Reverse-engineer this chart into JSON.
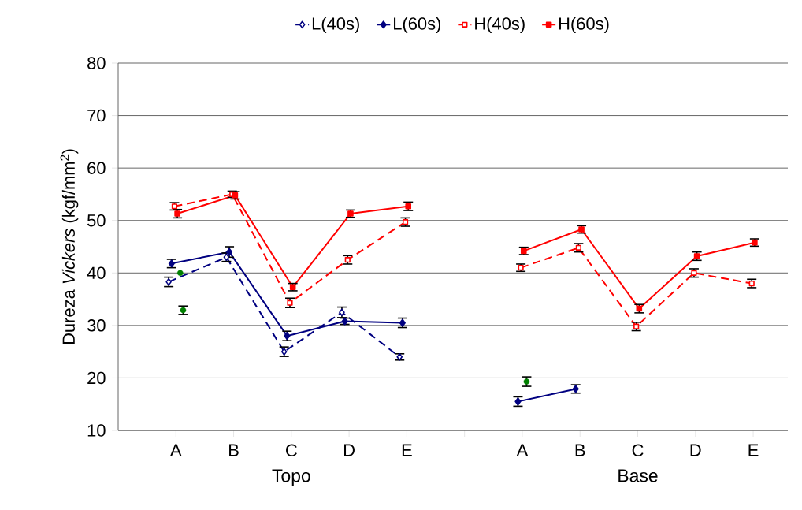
{
  "chart_data": {
    "type": "line",
    "ylabel": "Dureza *Vickers* (kgf/mm$^{2}$)",
    "categories": [
      "A",
      "B",
      "C",
      "D",
      "E",
      null,
      "A",
      "B",
      "C",
      "D",
      "E"
    ],
    "annotations": [
      "Topo",
      "Base"
    ],
    "ylim": [
      10,
      80
    ],
    "yticks": [
      10,
      20,
      30,
      40,
      50,
      60,
      70,
      80
    ],
    "grid": "y",
    "legend": "top",
    "series": [
      {
        "name": "L(40s)",
        "color": "#000080",
        "line_style": "dashed",
        "marker": "diamond",
        "values": [
          38.3,
          43,
          25,
          32.5,
          24,
          null,
          null,
          null,
          null,
          null,
          null
        ],
        "errors": [
          0.9,
          0.8,
          0.9,
          1,
          0.6,
          null,
          null,
          null,
          null,
          null,
          null
        ]
      },
      {
        "name": "L(60s)",
        "color": "#000080",
        "line_style": "solid",
        "marker": "diamond",
        "values": [
          41.8,
          44,
          28,
          30.8,
          30.5,
          null,
          15.5,
          17.9,
          null,
          null,
          null
        ],
        "errors": [
          0.8,
          1,
          0.9,
          0.6,
          0.9,
          null,
          0.9,
          0.8,
          null,
          null,
          null
        ]
      },
      {
        "name": "H(40s)",
        "color": "#ff0000",
        "line_style": "dashed",
        "marker": "square",
        "values": [
          52.7,
          55,
          34.3,
          42.5,
          49.7,
          null,
          41,
          44.8,
          29.8,
          40,
          38
        ],
        "errors": [
          0.7,
          0.6,
          0.9,
          0.8,
          0.8,
          null,
          0.7,
          0.8,
          0.8,
          0.8,
          0.8
        ]
      },
      {
        "name": "H(60s)",
        "color": "#ff0000",
        "line_style": "solid",
        "marker": "square",
        "values": [
          51.3,
          54.8,
          37.3,
          51.3,
          52.7,
          null,
          44.2,
          48.3,
          33.2,
          43.2,
          45.8
        ],
        "errors": [
          0.8,
          0.7,
          0.7,
          0.7,
          0.8,
          null,
          0.7,
          0.7,
          0.8,
          0.8,
          0.7
        ]
      },
      {
        "type": "scatter",
        "color": "#008000",
        "marker": "circle",
        "values": [
          40,
          null,
          null,
          null,
          null,
          null,
          19.3,
          null,
          null,
          null,
          null
        ],
        "errors": [
          null,
          null,
          null,
          null,
          null,
          null,
          0.9,
          null,
          null,
          null,
          null
        ]
      },
      {
        "type": "scatter",
        "color": "#008000",
        "marker": "circle",
        "values": [
          32.9,
          null,
          null,
          null,
          null,
          null,
          null,
          null,
          null,
          null,
          null
        ],
        "errors": [
          0.8,
          null,
          null,
          null,
          null,
          null,
          null,
          null,
          null,
          null,
          null
        ]
      }
    ]
  }
}
